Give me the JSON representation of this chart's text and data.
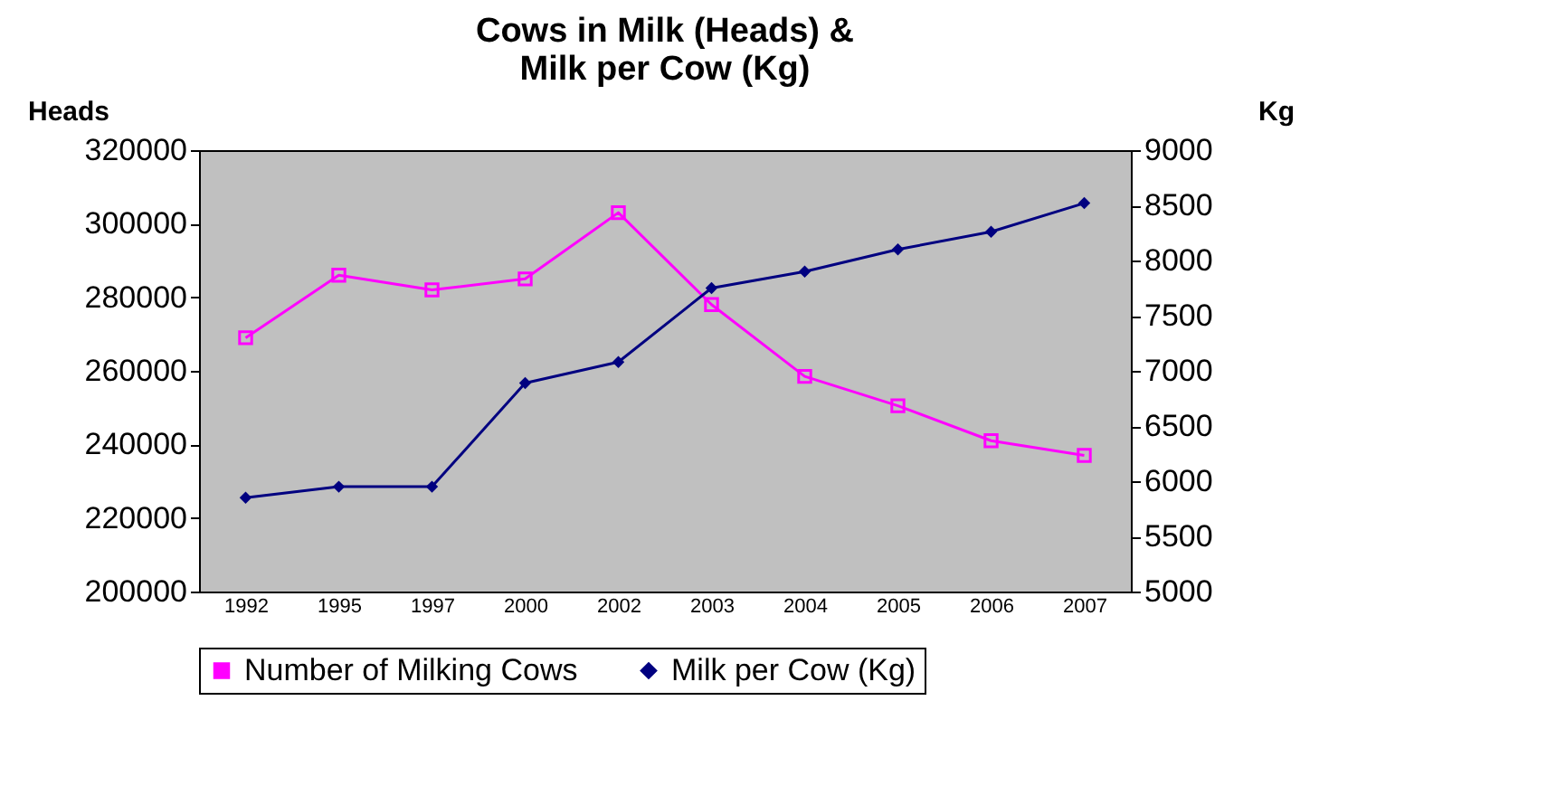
{
  "chart_data": {
    "type": "line",
    "title": [
      "Cows in Milk (Heads) &",
      "Milk per Cow (Kg)"
    ],
    "ylabel": "Heads",
    "y2label": "Kg",
    "categories": [
      "1992",
      "1995",
      "1997",
      "2000",
      "2002",
      "2003",
      "2004",
      "2005",
      "2006",
      "2007"
    ],
    "series": [
      {
        "name": "Number of Milking Cows",
        "color": "#ff00ff",
        "marker": "square",
        "values": [
          269000,
          286000,
          282000,
          285000,
          303000,
          278000,
          258500,
          250500,
          241000,
          237000
        ]
      },
      {
        "name": "Milk per Cow (Kg)",
        "color": "#000080",
        "marker": "diamond",
        "axis": "y2",
        "values": [
          5850,
          5950,
          5950,
          6890,
          7080,
          7750,
          7900,
          8100,
          8260,
          8520
        ]
      }
    ],
    "ylim": [
      200000,
      320000
    ],
    "yticks": [
      200000,
      220000,
      240000,
      260000,
      280000,
      300000,
      320000
    ],
    "y2lim": [
      5000,
      9000
    ],
    "y2ticks": [
      5000,
      5500,
      6000,
      6500,
      7000,
      7500,
      8000,
      8500,
      9000
    ],
    "grid": false,
    "legend": "bottom",
    "line_style": "solid"
  }
}
